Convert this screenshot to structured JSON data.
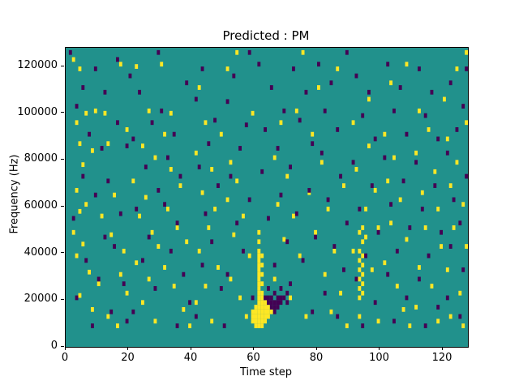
{
  "chart_data": {
    "type": "heatmap",
    "title": "Predicted : PM",
    "xlabel": "Time step",
    "ylabel": "Frequency (Hz)",
    "x_range": [
      0,
      128
    ],
    "y_range": [
      0,
      128000
    ],
    "xticks": [
      0,
      20,
      40,
      60,
      80,
      100,
      120
    ],
    "yticks": [
      0,
      20000,
      40000,
      60000,
      80000,
      100000,
      120000
    ],
    "grid": false,
    "legend": "none",
    "colors": {
      "background": "#21918c",
      "high": "#fde725",
      "low": "#440154",
      "figure_background": "#ffffff",
      "axis": "#000000"
    },
    "freq_bin_hz": 1000,
    "cells_high": [
      [
        2,
        122
      ],
      [
        4,
        118
      ],
      [
        3,
        95
      ],
      [
        6,
        99
      ],
      [
        9,
        100
      ],
      [
        12,
        99
      ],
      [
        4,
        86
      ],
      [
        8,
        83
      ],
      [
        5,
        77
      ],
      [
        3,
        66
      ],
      [
        6,
        60
      ],
      [
        4,
        57
      ],
      [
        2,
        48
      ],
      [
        5,
        43
      ],
      [
        3,
        38
      ],
      [
        7,
        31
      ],
      [
        10,
        26
      ],
      [
        4,
        21
      ],
      [
        8,
        15
      ],
      [
        13,
        12
      ],
      [
        16,
        8
      ],
      [
        11,
        55
      ],
      [
        14,
        47
      ],
      [
        18,
        40
      ],
      [
        17,
        30
      ],
      [
        19,
        22
      ],
      [
        15,
        64
      ],
      [
        19,
        92
      ],
      [
        13,
        86
      ],
      [
        17,
        120
      ],
      [
        22,
        119
      ],
      [
        26,
        100
      ],
      [
        24,
        85
      ],
      [
        28,
        80
      ],
      [
        21,
        70
      ],
      [
        25,
        63
      ],
      [
        23,
        55
      ],
      [
        27,
        48
      ],
      [
        29,
        42
      ],
      [
        22,
        35
      ],
      [
        26,
        28
      ],
      [
        24,
        18
      ],
      [
        28,
        10
      ],
      [
        31,
        90
      ],
      [
        33,
        75
      ],
      [
        36,
        68
      ],
      [
        32,
        58
      ],
      [
        35,
        50
      ],
      [
        38,
        44
      ],
      [
        31,
        33
      ],
      [
        34,
        25
      ],
      [
        37,
        15
      ],
      [
        39,
        8
      ],
      [
        33,
        99
      ],
      [
        30,
        120
      ],
      [
        42,
        110
      ],
      [
        44,
        95
      ],
      [
        41,
        82
      ],
      [
        46,
        75
      ],
      [
        43,
        65
      ],
      [
        47,
        58
      ],
      [
        45,
        50
      ],
      [
        42,
        40
      ],
      [
        48,
        33
      ],
      [
        44,
        25
      ],
      [
        41,
        18
      ],
      [
        46,
        10
      ],
      [
        49,
        90
      ],
      [
        52,
        78
      ],
      [
        54,
        70
      ],
      [
        51,
        62
      ],
      [
        56,
        55
      ],
      [
        53,
        47
      ],
      [
        58,
        38
      ],
      [
        52,
        28
      ],
      [
        55,
        20
      ],
      [
        57,
        12
      ],
      [
        59,
        99
      ],
      [
        51,
        118
      ],
      [
        54,
        125
      ],
      [
        59,
        10
      ],
      [
        59,
        12
      ],
      [
        59,
        14
      ],
      [
        60,
        8
      ],
      [
        60,
        10
      ],
      [
        60,
        12
      ],
      [
        60,
        14
      ],
      [
        60,
        16
      ],
      [
        61,
        8
      ],
      [
        61,
        10
      ],
      [
        61,
        12
      ],
      [
        61,
        14
      ],
      [
        61,
        16
      ],
      [
        61,
        18
      ],
      [
        62,
        8
      ],
      [
        62,
        10
      ],
      [
        62,
        12
      ],
      [
        62,
        14
      ],
      [
        62,
        16
      ],
      [
        62,
        18
      ],
      [
        62,
        20
      ],
      [
        63,
        10
      ],
      [
        63,
        12
      ],
      [
        63,
        14
      ],
      [
        63,
        16
      ],
      [
        63,
        18
      ],
      [
        64,
        12
      ],
      [
        64,
        14
      ],
      [
        64,
        16
      ],
      [
        65,
        14
      ],
      [
        61,
        20
      ],
      [
        61,
        22
      ],
      [
        61,
        24
      ],
      [
        61,
        26
      ],
      [
        61,
        28
      ],
      [
        61,
        30
      ],
      [
        61,
        32
      ],
      [
        61,
        34
      ],
      [
        61,
        36
      ],
      [
        61,
        38
      ],
      [
        62,
        22
      ],
      [
        62,
        26
      ],
      [
        62,
        30
      ],
      [
        62,
        34
      ],
      [
        62,
        38
      ],
      [
        61,
        40
      ],
      [
        61,
        44
      ],
      [
        61,
        48
      ],
      [
        68,
        95
      ],
      [
        66,
        80
      ],
      [
        70,
        72
      ],
      [
        67,
        60
      ],
      [
        72,
        55
      ],
      [
        69,
        45
      ],
      [
        74,
        38
      ],
      [
        66,
        28
      ],
      [
        71,
        20
      ],
      [
        76,
        12
      ],
      [
        78,
        90
      ],
      [
        81,
        78
      ],
      [
        77,
        65
      ],
      [
        83,
        58
      ],
      [
        79,
        48
      ],
      [
        85,
        40
      ],
      [
        82,
        30
      ],
      [
        87,
        22
      ],
      [
        84,
        14
      ],
      [
        89,
        8
      ],
      [
        73,
        100
      ],
      [
        80,
        110
      ],
      [
        86,
        118
      ],
      [
        75,
        125
      ],
      [
        88,
        68
      ],
      [
        93,
        20
      ],
      [
        93,
        24
      ],
      [
        93,
        28
      ],
      [
        93,
        32
      ],
      [
        93,
        36
      ],
      [
        93,
        40
      ],
      [
        94,
        22
      ],
      [
        94,
        26
      ],
      [
        94,
        30
      ],
      [
        94,
        34
      ],
      [
        94,
        38
      ],
      [
        94,
        44
      ],
      [
        93,
        48
      ],
      [
        94,
        50
      ],
      [
        95,
        46
      ],
      [
        91,
        95
      ],
      [
        96,
        85
      ],
      [
        92,
        75
      ],
      [
        98,
        66
      ],
      [
        95,
        58
      ],
      [
        99,
        50
      ],
      [
        91,
        40
      ],
      [
        97,
        32
      ],
      [
        93,
        12
      ],
      [
        99,
        10
      ],
      [
        101,
        90
      ],
      [
        104,
        80
      ],
      [
        102,
        70
      ],
      [
        106,
        62
      ],
      [
        103,
        52
      ],
      [
        108,
        45
      ],
      [
        101,
        35
      ],
      [
        105,
        25
      ],
      [
        107,
        15
      ],
      [
        109,
        8
      ],
      [
        96,
        105
      ],
      [
        103,
        112
      ],
      [
        108,
        120
      ],
      [
        112,
        100
      ],
      [
        115,
        92
      ],
      [
        111,
        82
      ],
      [
        117,
        74
      ],
      [
        113,
        65
      ],
      [
        118,
        58
      ],
      [
        114,
        50
      ],
      [
        119,
        42
      ],
      [
        112,
        33
      ],
      [
        116,
        25
      ],
      [
        111,
        16
      ],
      [
        118,
        10
      ],
      [
        121,
        88
      ],
      [
        124,
        78
      ],
      [
        122,
        68
      ],
      [
        126,
        60
      ],
      [
        123,
        50
      ],
      [
        127,
        42
      ],
      [
        121,
        32
      ],
      [
        125,
        22
      ],
      [
        122,
        12
      ],
      [
        126,
        8
      ],
      [
        127,
        125
      ],
      [
        124,
        118
      ],
      [
        120,
        105
      ],
      [
        127,
        95
      ]
    ],
    "cells_low": [
      [
        1,
        125
      ],
      [
        5,
        110
      ],
      [
        9,
        118
      ],
      [
        3,
        102
      ],
      [
        7,
        90
      ],
      [
        11,
        84
      ],
      [
        5,
        72
      ],
      [
        9,
        64
      ],
      [
        2,
        54
      ],
      [
        12,
        46
      ],
      [
        6,
        36
      ],
      [
        10,
        28
      ],
      [
        3,
        20
      ],
      [
        14,
        14
      ],
      [
        8,
        8
      ],
      [
        16,
        95
      ],
      [
        19,
        85
      ],
      [
        13,
        70
      ],
      [
        17,
        56
      ],
      [
        15,
        42
      ],
      [
        18,
        26
      ],
      [
        12,
        108
      ],
      [
        20,
        115
      ],
      [
        16,
        122
      ],
      [
        19,
        10
      ],
      [
        23,
        108
      ],
      [
        27,
        95
      ],
      [
        21,
        88
      ],
      [
        25,
        76
      ],
      [
        29,
        66
      ],
      [
        22,
        58
      ],
      [
        26,
        46
      ],
      [
        24,
        36
      ],
      [
        28,
        24
      ],
      [
        21,
        14
      ],
      [
        30,
        100
      ],
      [
        34,
        90
      ],
      [
        32,
        80
      ],
      [
        36,
        72
      ],
      [
        31,
        60
      ],
      [
        35,
        52
      ],
      [
        33,
        40
      ],
      [
        37,
        30
      ],
      [
        39,
        18
      ],
      [
        38,
        112
      ],
      [
        29,
        125
      ],
      [
        35,
        8
      ],
      [
        43,
        118
      ],
      [
        41,
        105
      ],
      [
        47,
        96
      ],
      [
        45,
        86
      ],
      [
        42,
        76
      ],
      [
        48,
        68
      ],
      [
        44,
        56
      ],
      [
        46,
        44
      ],
      [
        43,
        34
      ],
      [
        49,
        24
      ],
      [
        41,
        12
      ],
      [
        53,
        115
      ],
      [
        51,
        104
      ],
      [
        57,
        94
      ],
      [
        55,
        84
      ],
      [
        52,
        72
      ],
      [
        58,
        62
      ],
      [
        54,
        52
      ],
      [
        56,
        40
      ],
      [
        51,
        30
      ],
      [
        59,
        20
      ],
      [
        58,
        125
      ],
      [
        50,
        8
      ],
      [
        63,
        20
      ],
      [
        64,
        18
      ],
      [
        64,
        20
      ],
      [
        65,
        16
      ],
      [
        65,
        18
      ],
      [
        65,
        20
      ],
      [
        66,
        14
      ],
      [
        66,
        16
      ],
      [
        66,
        18
      ],
      [
        67,
        16
      ],
      [
        67,
        18
      ],
      [
        67,
        20
      ],
      [
        68,
        18
      ],
      [
        68,
        20
      ],
      [
        69,
        20
      ],
      [
        70,
        22
      ],
      [
        66,
        22
      ],
      [
        64,
        24
      ],
      [
        68,
        24
      ],
      [
        70,
        18
      ],
      [
        61,
        120
      ],
      [
        65,
        110
      ],
      [
        69,
        100
      ],
      [
        63,
        92
      ],
      [
        67,
        84
      ],
      [
        62,
        74
      ],
      [
        68,
        64
      ],
      [
        64,
        54
      ],
      [
        70,
        44
      ],
      [
        66,
        34
      ],
      [
        72,
        118
      ],
      [
        76,
        108
      ],
      [
        74,
        96
      ],
      [
        78,
        86
      ],
      [
        71,
        76
      ],
      [
        77,
        66
      ],
      [
        73,
        56
      ],
      [
        79,
        46
      ],
      [
        75,
        36
      ],
      [
        71,
        26
      ],
      [
        78,
        14
      ],
      [
        80,
        120
      ],
      [
        84,
        112
      ],
      [
        82,
        100
      ],
      [
        86,
        92
      ],
      [
        81,
        82
      ],
      [
        87,
        72
      ],
      [
        83,
        62
      ],
      [
        89,
        52
      ],
      [
        85,
        42
      ],
      [
        88,
        32
      ],
      [
        82,
        22
      ],
      [
        86,
        12
      ],
      [
        89,
        125
      ],
      [
        92,
        115
      ],
      [
        96,
        108
      ],
      [
        94,
        98
      ],
      [
        98,
        88
      ],
      [
        91,
        78
      ],
      [
        97,
        68
      ],
      [
        93,
        58
      ],
      [
        99,
        48
      ],
      [
        95,
        38
      ],
      [
        92,
        28
      ],
      [
        98,
        18
      ],
      [
        94,
        8
      ],
      [
        102,
        120
      ],
      [
        106,
        110
      ],
      [
        104,
        100
      ],
      [
        108,
        90
      ],
      [
        101,
        80
      ],
      [
        107,
        70
      ],
      [
        103,
        60
      ],
      [
        109,
        50
      ],
      [
        105,
        40
      ],
      [
        102,
        30
      ],
      [
        108,
        20
      ],
      [
        104,
        10
      ],
      [
        112,
        118
      ],
      [
        116,
        108
      ],
      [
        114,
        98
      ],
      [
        118,
        88
      ],
      [
        111,
        78
      ],
      [
        117,
        68
      ],
      [
        113,
        58
      ],
      [
        119,
        48
      ],
      [
        115,
        38
      ],
      [
        112,
        28
      ],
      [
        118,
        16
      ],
      [
        114,
        8
      ],
      [
        122,
        112
      ],
      [
        126,
        102
      ],
      [
        124,
        92
      ],
      [
        121,
        82
      ],
      [
        127,
        72
      ],
      [
        123,
        62
      ],
      [
        125,
        52
      ],
      [
        122,
        42
      ],
      [
        126,
        32
      ],
      [
        121,
        20
      ],
      [
        125,
        12
      ],
      [
        127,
        118
      ]
    ]
  }
}
